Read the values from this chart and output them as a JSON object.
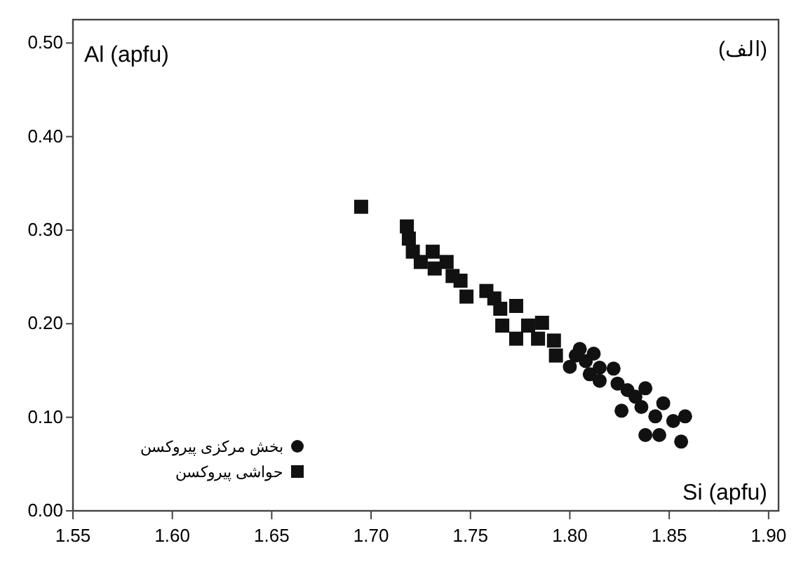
{
  "chart_data": {
    "type": "scatter",
    "xlabel": "Si (apfu)",
    "ylabel": "Al (apfu)",
    "annotations": [
      "(الف)"
    ],
    "xlim": [
      1.55,
      1.905
    ],
    "ylim": [
      0,
      0.525
    ],
    "xticks": [
      {
        "value": 1.55,
        "label": "1.55"
      },
      {
        "value": 1.6,
        "label": "1.60"
      },
      {
        "value": 1.65,
        "label": "1.65"
      },
      {
        "value": 1.7,
        "label": "1.70"
      },
      {
        "value": 1.75,
        "label": "1.75"
      },
      {
        "value": 1.8,
        "label": "1.80"
      },
      {
        "value": 1.85,
        "label": "1.85"
      },
      {
        "value": 1.9,
        "label": "1.90"
      }
    ],
    "yticks": [
      {
        "value": 0,
        "label": "0.00"
      },
      {
        "value": 0.1,
        "label": "0.10"
      },
      {
        "value": 0.2,
        "label": "0.20"
      },
      {
        "value": 0.3,
        "label": "0.30"
      },
      {
        "value": 0.4,
        "label": "0.40"
      },
      {
        "value": 0.5,
        "label": "0.50"
      }
    ],
    "grid": false,
    "legend": "bottom left",
    "series": [
      {
        "name": "بخش مرکزی پیروکسن",
        "color": "#111111",
        "marker": "circle",
        "x": [
          1.803,
          1.808,
          1.815,
          1.81,
          1.822,
          1.824,
          1.829,
          1.826,
          1.833,
          1.838,
          1.836,
          1.843,
          1.847,
          1.845,
          1.852,
          1.856,
          1.858,
          1.838,
          1.805,
          1.812,
          1.8,
          1.815
        ],
        "values": [
          0.166,
          0.16,
          0.153,
          0.146,
          0.152,
          0.136,
          0.129,
          0.107,
          0.122,
          0.131,
          0.111,
          0.101,
          0.115,
          0.081,
          0.096,
          0.074,
          0.101,
          0.081,
          0.173,
          0.168,
          0.154,
          0.139
        ]
      },
      {
        "name": "حواشی پیروکسن",
        "color": "#111111",
        "marker": "square",
        "x": [
          1.695,
          1.718,
          1.719,
          1.721,
          1.725,
          1.731,
          1.732,
          1.738,
          1.741,
          1.745,
          1.748,
          1.758,
          1.762,
          1.765,
          1.773,
          1.766,
          1.773,
          1.779,
          1.786,
          1.784,
          1.792,
          1.793
        ],
        "values": [
          0.325,
          0.304,
          0.291,
          0.277,
          0.266,
          0.277,
          0.259,
          0.266,
          0.251,
          0.246,
          0.229,
          0.235,
          0.227,
          0.216,
          0.219,
          0.198,
          0.184,
          0.198,
          0.201,
          0.184,
          0.182,
          0.166
        ]
      }
    ]
  }
}
